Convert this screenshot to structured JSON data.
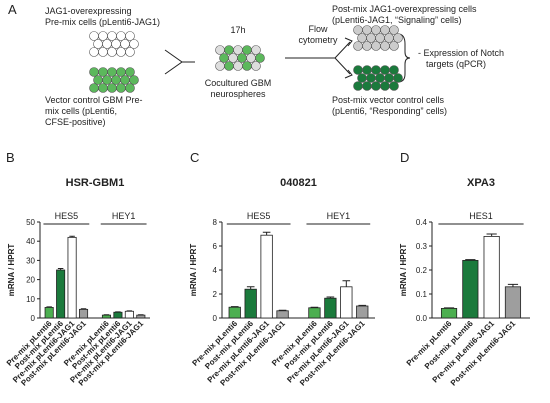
{
  "diagram": {
    "panel": "A",
    "source_top": [
      "JAG1-overexpressing",
      "Pre-mix cells (pLenti6-JAG1)"
    ],
    "source_bottom": [
      "Vector control GBM Pre-",
      "mix cells (pLenti6,",
      "CFSE-positive)"
    ],
    "time": "17h",
    "coculture": [
      "Cocultured GBM",
      "neurospheres"
    ],
    "sort": [
      "Flow",
      "cytometry"
    ],
    "out_top": [
      "Post-mix JAG1-overexpressing cells",
      "(pLenti6-JAG1, “Signaling” cells)"
    ],
    "out_bottom": [
      "Post-mix vector control cells",
      "(pLenti6, “Responding” cells)"
    ],
    "readout": [
      "- Expression of Notch",
      "targets (qPCR)"
    ]
  },
  "chart_data": [
    {
      "type": "bar",
      "panel": "B",
      "title": "HSR-GBM1",
      "y_label": "mRNA / HPRT",
      "ylim": [
        0,
        50
      ],
      "yticks": [
        0,
        10,
        20,
        30,
        40,
        50
      ],
      "categories": [
        "HES5",
        "HEY1"
      ],
      "series": [
        {
          "name": "Pre-mix pLenti6",
          "color": "#4caf50",
          "values": [
            5.5,
            1.5
          ],
          "errors": [
            0.3,
            0.2
          ]
        },
        {
          "name": "Post-mix pLenti6",
          "color": "#1b7a3c",
          "values": [
            25,
            3
          ],
          "errors": [
            0.8,
            0.2
          ]
        },
        {
          "name": "Pre-mix pLenti6-JAG1",
          "color": "#ffffff",
          "values": [
            42,
            3.5
          ],
          "errors": [
            0.6,
            0.2
          ]
        },
        {
          "name": "Post-mix pLenti6-JAG1",
          "color": "#9e9e9e",
          "values": [
            4.5,
            1.5
          ],
          "errors": [
            0.3,
            0.2
          ]
        }
      ]
    },
    {
      "type": "bar",
      "panel": "C",
      "title": "040821",
      "y_label": "mRNA / HPRT",
      "ylim": [
        0,
        8
      ],
      "yticks": [
        0,
        2,
        4,
        6,
        8
      ],
      "categories": [
        "HES5",
        "HEY1"
      ],
      "series": [
        {
          "name": "Pre-mix pLenti6",
          "color": "#4caf50",
          "values": [
            0.9,
            0.85
          ],
          "errors": [
            0.05,
            0.05
          ]
        },
        {
          "name": "Post-mix pLenti6",
          "color": "#1b7a3c",
          "values": [
            2.4,
            1.65
          ],
          "errors": [
            0.2,
            0.1
          ]
        },
        {
          "name": "Pre-mix pLenti6-JAG1",
          "color": "#ffffff",
          "values": [
            6.9,
            2.6
          ],
          "errors": [
            0.25,
            0.5
          ]
        },
        {
          "name": "Post-mix pLenti6-JAG1",
          "color": "#9e9e9e",
          "values": [
            0.6,
            1.0
          ],
          "errors": [
            0.05,
            0.05
          ]
        }
      ]
    },
    {
      "type": "bar",
      "panel": "D",
      "title": "XPA3",
      "y_label": "mRNA / HPRT",
      "ylim": [
        0,
        0.4
      ],
      "yticks": [
        {
          "value": 0,
          "label": "0.0"
        },
        0.1,
        0.2,
        0.3,
        0.4
      ],
      "categories": [
        "HES1"
      ],
      "series": [
        {
          "name": "Pre-mix pLenti6",
          "color": "#4caf50",
          "values": [
            0.04
          ],
          "errors": [
            0.002
          ]
        },
        {
          "name": "Post-mix pLenti6",
          "color": "#1b7a3c",
          "values": [
            0.24
          ],
          "errors": [
            0.003
          ]
        },
        {
          "name": "Pre-mix pLenti6-JAG1",
          "color": "#ffffff",
          "values": [
            0.34
          ],
          "errors": [
            0.01
          ]
        },
        {
          "name": "Post-mix pLenti6-JAG1",
          "color": "#9e9e9e",
          "values": [
            0.13
          ],
          "errors": [
            0.01
          ]
        }
      ]
    }
  ]
}
